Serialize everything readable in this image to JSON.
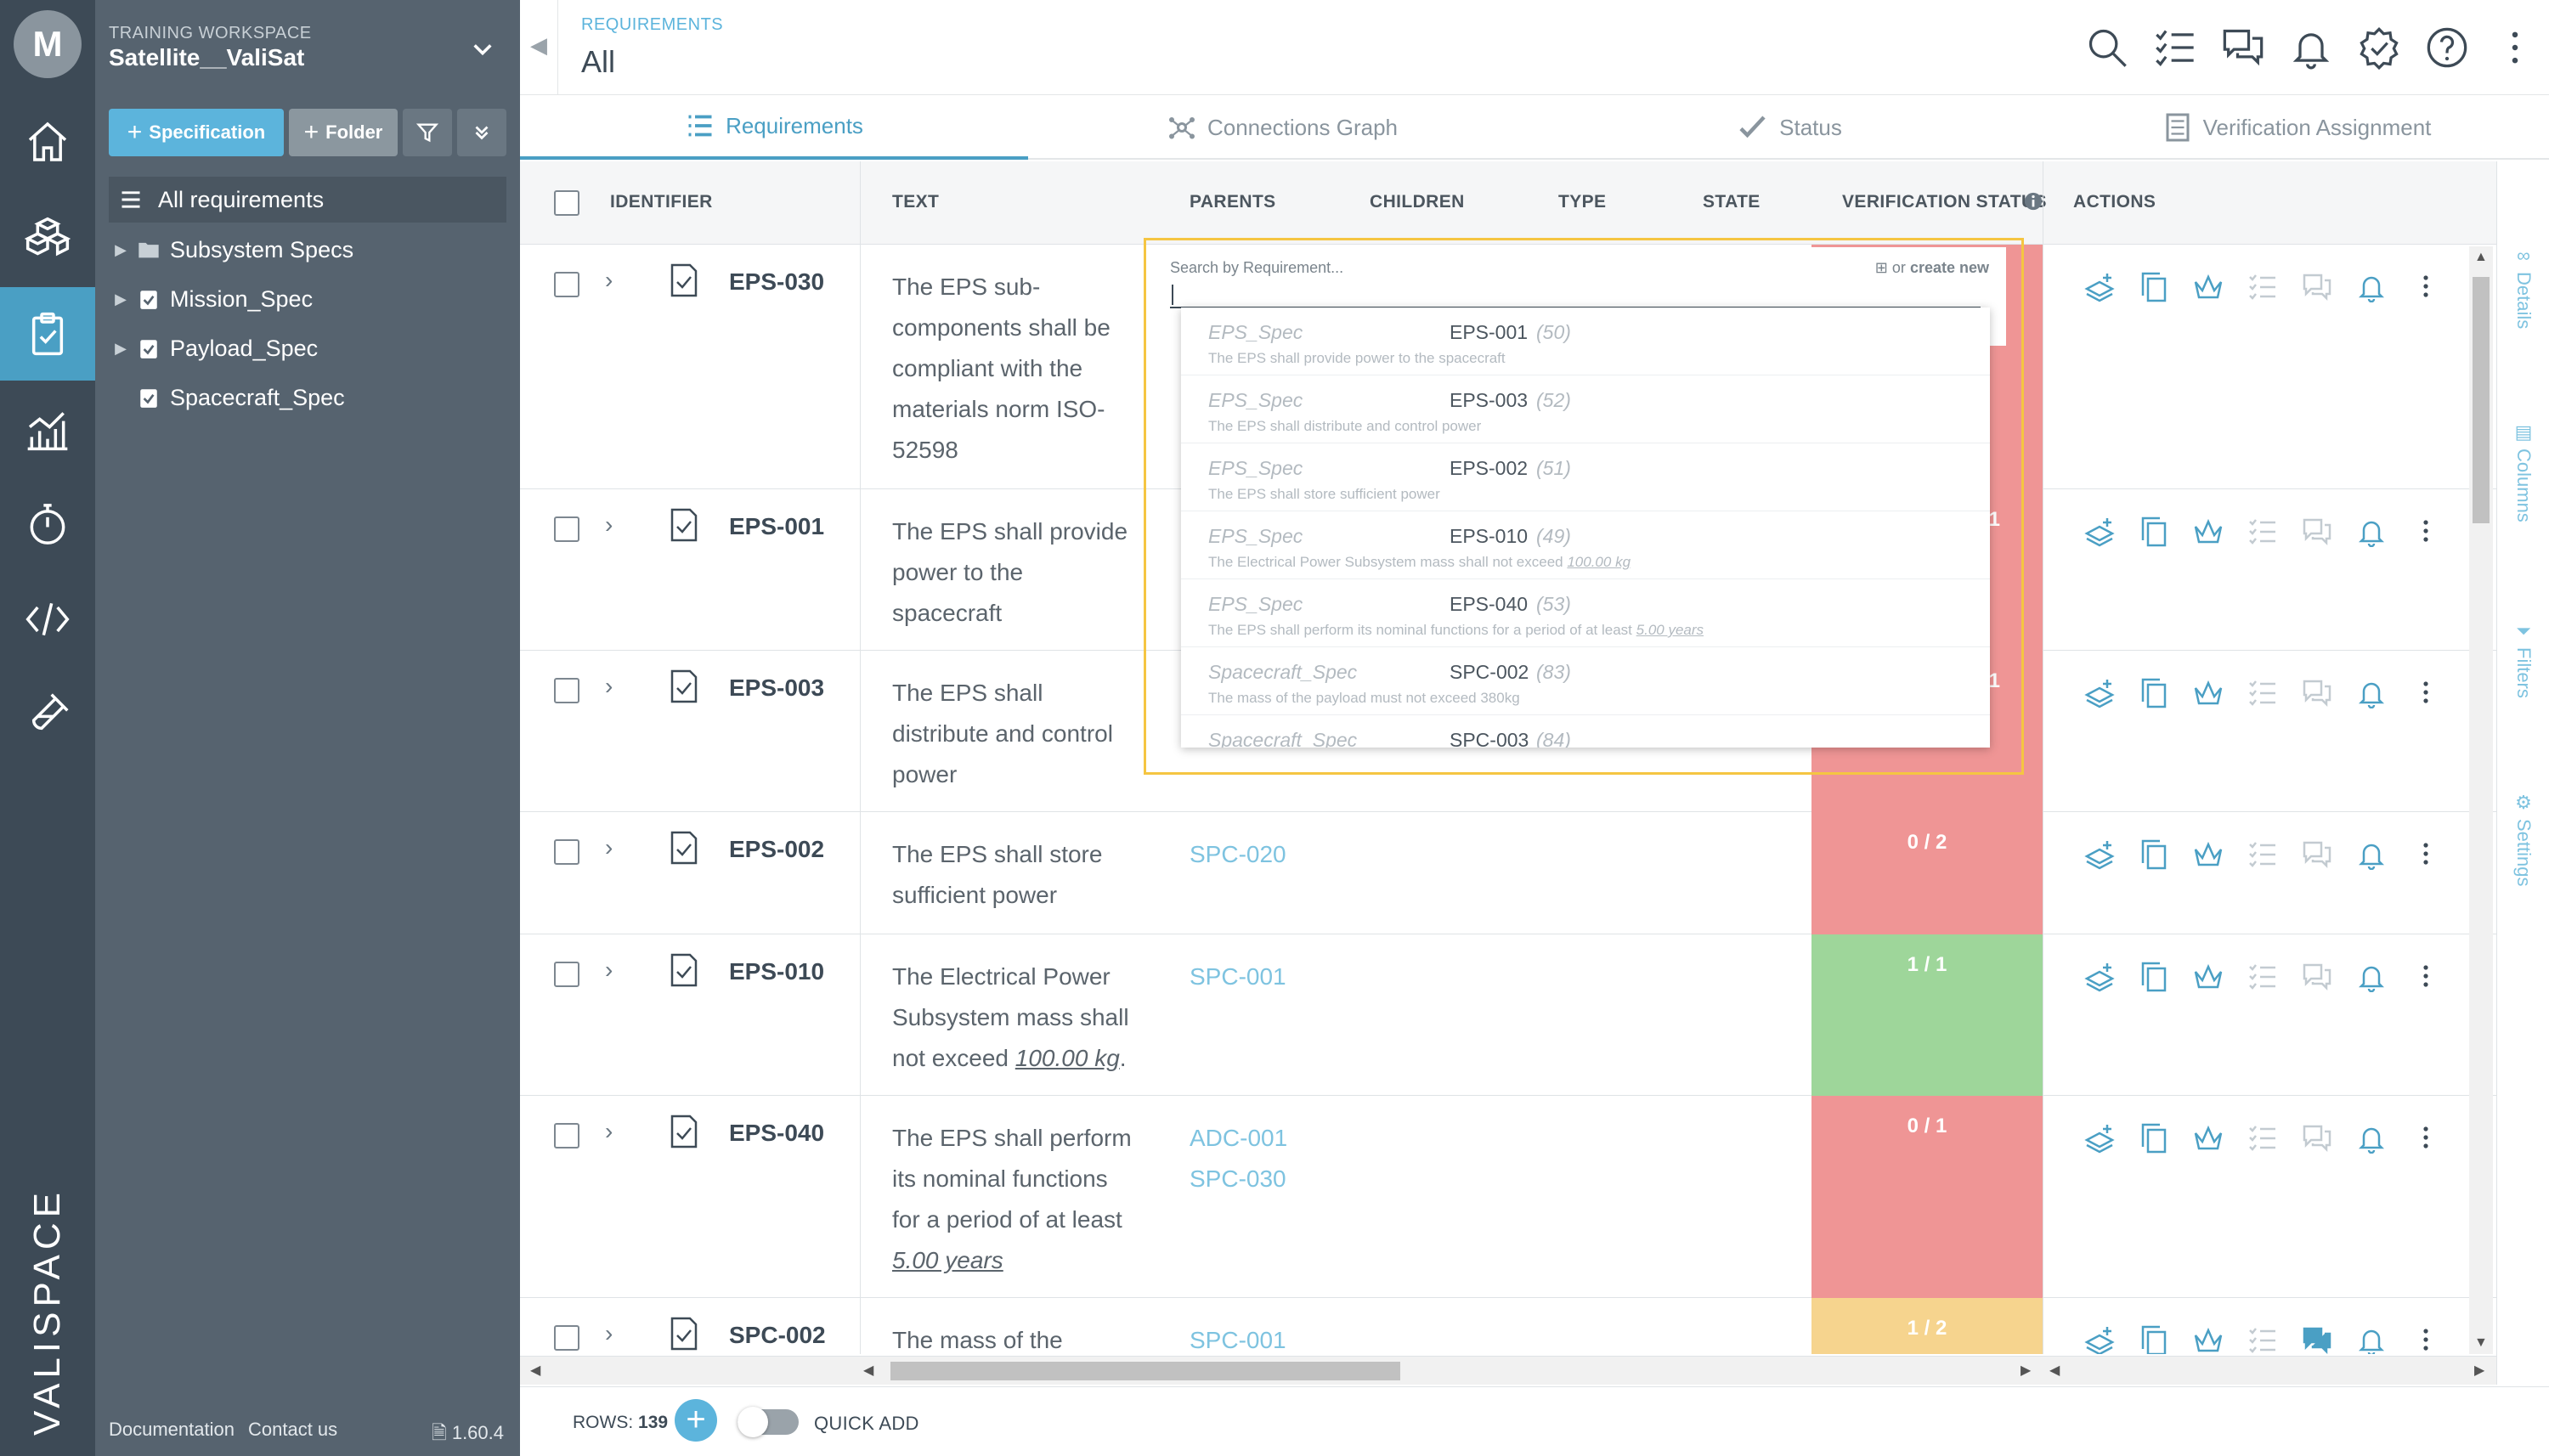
{
  "rail": {
    "avatar": "M",
    "brand": "VALISPACE"
  },
  "sidebar": {
    "workspace_label": "TRAINING WORKSPACE",
    "workspace_name": "Satellite__ValiSat",
    "spec_button": "Specification",
    "folder_button": "Folder",
    "all_requirements": "All requirements",
    "tree": [
      {
        "label": "Subsystem Specs",
        "kind": "folder",
        "expandable": true
      },
      {
        "label": "Mission_Spec",
        "kind": "spec",
        "expandable": true
      },
      {
        "label": "Payload_Spec",
        "kind": "spec",
        "expandable": true
      },
      {
        "label": "Spacecraft_Spec",
        "kind": "spec",
        "expandable": false
      }
    ],
    "footer_docs": "Documentation",
    "footer_contact": "Contact us",
    "version": "1.60.4"
  },
  "header": {
    "breadcrumb": "REQUIREMENTS",
    "title": "All"
  },
  "tabs": [
    {
      "label": "Requirements",
      "icon": "list-icon",
      "active": true
    },
    {
      "label": "Connections Graph",
      "icon": "graph-icon",
      "active": false
    },
    {
      "label": "Status",
      "icon": "check-icon",
      "active": false
    },
    {
      "label": "Verification Assignment",
      "icon": "checklist-icon",
      "active": false
    }
  ],
  "table": {
    "columns": {
      "identifier": "IDENTIFIER",
      "text": "TEXT",
      "parents": "PARENTS",
      "children": "CHILDREN",
      "type": "TYPE",
      "state": "STATE",
      "verification_status": "VERIFICATION STATUS",
      "actions": "ACTIONS"
    },
    "rows": [
      {
        "id": "EPS-030",
        "text": "The EPS sub-components shall be compliant with the materials norm ISO-52598",
        "parents": [],
        "vstatus": "",
        "vcolor": "red"
      },
      {
        "id": "EPS-001",
        "text": "The EPS shall provide power to the spacecraft",
        "parents": [],
        "vstatus": "1",
        "vcolor": "red"
      },
      {
        "id": "EPS-003",
        "text": "The EPS shall distribute and control power",
        "parents": [],
        "vstatus": "1",
        "vcolor": "red"
      },
      {
        "id": "EPS-002",
        "text": "The EPS shall store sufficient power",
        "parents": [
          "SPC-020"
        ],
        "vstatus": "0 / 2",
        "vcolor": "red"
      },
      {
        "id": "EPS-010",
        "text_pre": "The Electrical Power Subsystem mass shall not exceed ",
        "text_val": "100.00 kg",
        "text_post": ".",
        "parents": [
          "SPC-001"
        ],
        "vstatus": "1 / 1",
        "vcolor": "green"
      },
      {
        "id": "EPS-040",
        "text_pre": "The EPS shall perform its nominal functions for a period of at least ",
        "text_val": "5.00 years",
        "text_post": "",
        "parents": [
          "ADC-001",
          "SPC-030"
        ],
        "vstatus": "0 / 1",
        "vcolor": "red"
      },
      {
        "id": "SPC-002",
        "text": "The mass of the",
        "parents": [
          "SPC-001"
        ],
        "vstatus": "1 / 2",
        "vcolor": "yellow"
      }
    ]
  },
  "search_popup": {
    "placeholder": "Search by Requirement...",
    "or_text": "or",
    "create_new": "create new",
    "results": [
      {
        "spec": "EPS_Spec",
        "id": "EPS-001",
        "num": "(50)",
        "desc": "The EPS shall provide power to the spacecraft"
      },
      {
        "spec": "EPS_Spec",
        "id": "EPS-003",
        "num": "(52)",
        "desc": "The EPS shall distribute and control power"
      },
      {
        "spec": "EPS_Spec",
        "id": "EPS-002",
        "num": "(51)",
        "desc": "The EPS shall store sufficient power"
      },
      {
        "spec": "EPS_Spec",
        "id": "EPS-010",
        "num": "(49)",
        "desc": "The Electrical Power Subsystem mass shall not exceed ",
        "desc_val": "100.00 kg"
      },
      {
        "spec": "EPS_Spec",
        "id": "EPS-040",
        "num": "(53)",
        "desc": "The EPS shall perform its nominal functions for a period of at least ",
        "desc_val": "5.00 years"
      },
      {
        "spec": "Spacecraft_Spec",
        "id": "SPC-002",
        "num": "(83)",
        "desc": "The mass of the payload must not exceed 380kg"
      },
      {
        "spec": "Spacecraft_Spec",
        "id": "SPC-003",
        "num": "(84)",
        "desc": ""
      }
    ]
  },
  "right_panel": [
    "Details",
    "Columns",
    "Filters",
    "Settings"
  ],
  "bottom": {
    "rows_label": "ROWS:",
    "rows_count": "139",
    "quick_add": "QUICK ADD"
  },
  "colors": {
    "accent": "#5cb4dc",
    "rail_bg": "#3d4a56",
    "sidebar_bg": "#56636f",
    "status_red": "#ef9595",
    "status_green": "#9ed69a",
    "status_yellow": "#f6d48e",
    "popup_border": "#f5c542"
  }
}
